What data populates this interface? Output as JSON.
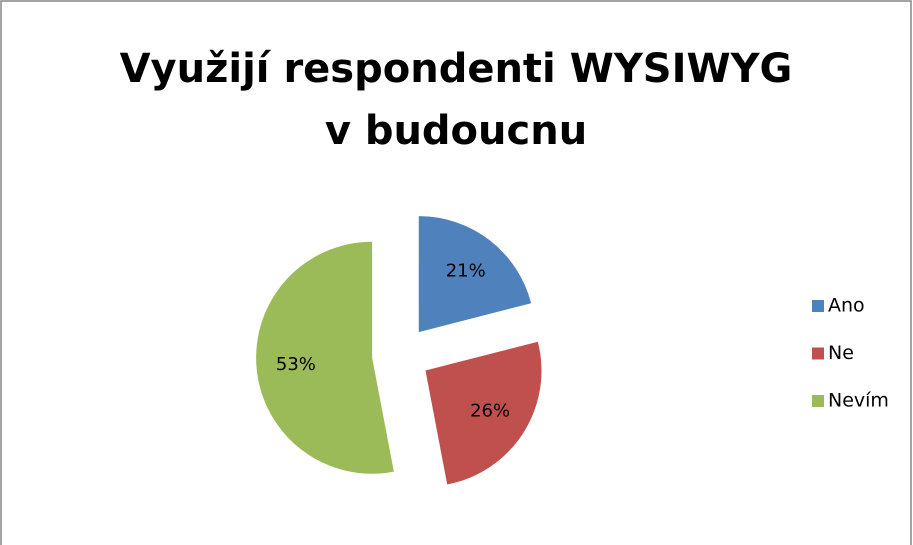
{
  "chart_data": {
    "type": "pie",
    "title": "Využijí respondenti WYSIWYG v budoucnu",
    "categories": [
      "Ano",
      "Ne",
      "Nevím"
    ],
    "values": [
      21,
      26,
      53
    ],
    "value_labels": [
      "21%",
      "26%",
      "53%"
    ],
    "colors": [
      "#4f81bd",
      "#c0504d",
      "#9bbb59"
    ],
    "exploded": true,
    "legend": "right"
  }
}
